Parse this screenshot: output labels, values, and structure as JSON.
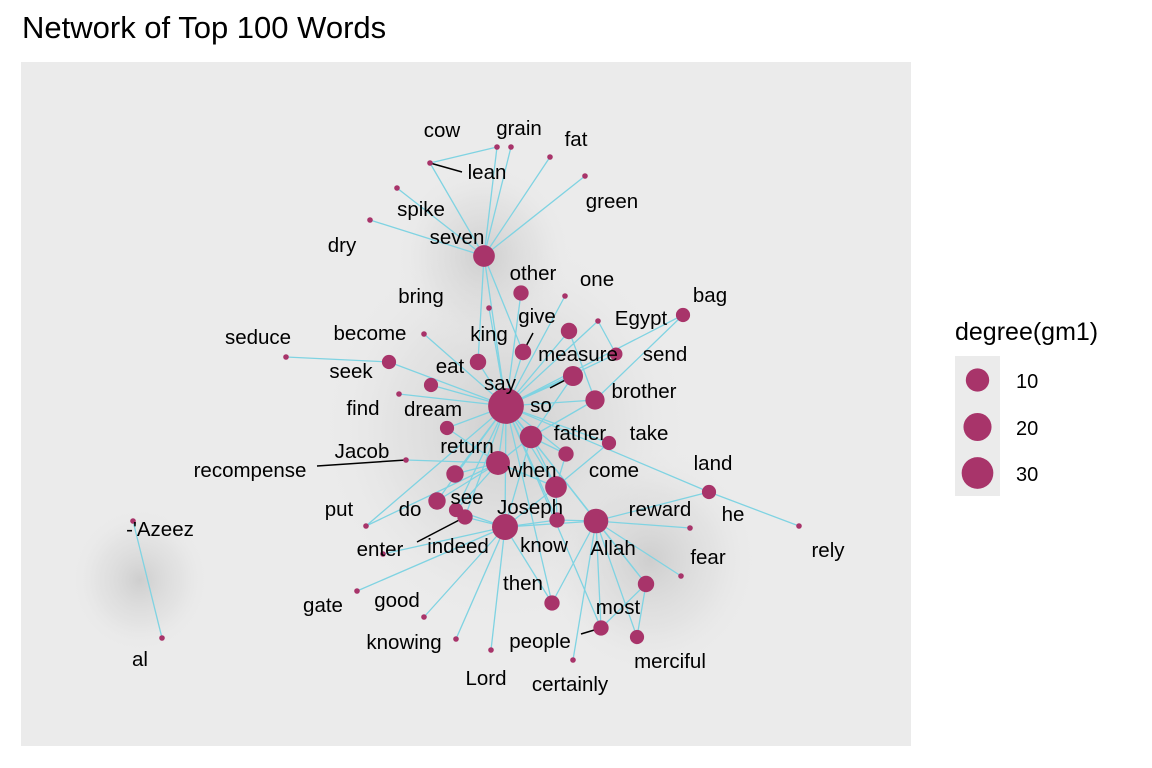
{
  "title": "Network of Top 100 Words",
  "chart_data": {
    "type": "network",
    "title": "Network of Top 100 Words",
    "colors": {
      "node": "#a8346a",
      "edge": "#7fd3e2",
      "panel": "#ebebeb",
      "legend_key": "#ebebeb"
    },
    "legend": {
      "title": "degree(gm1)",
      "placement": "right",
      "entries": [
        {
          "label": "10",
          "value": 10
        },
        {
          "label": "20",
          "value": 20
        },
        {
          "label": "30",
          "value": 30
        }
      ]
    },
    "nodes": [
      {
        "id": "say",
        "label": "say",
        "degree": 38
      },
      {
        "id": "Joseph",
        "label": "Joseph",
        "degree": 20
      },
      {
        "id": "Allah",
        "label": "Allah",
        "degree": 18
      },
      {
        "id": "return",
        "label": "return",
        "degree": 17
      },
      {
        "id": "father",
        "label": "father",
        "degree": 15
      },
      {
        "id": "seven",
        "label": "seven",
        "degree": 14
      },
      {
        "id": "when",
        "label": "when",
        "degree": 14
      },
      {
        "id": "so",
        "label": "so",
        "degree": 12
      },
      {
        "id": "brother",
        "label": "brother",
        "degree": 11
      },
      {
        "id": "do",
        "label": "do",
        "degree": 9
      },
      {
        "id": "Jacob",
        "label": "Jacob",
        "degree": 9
      },
      {
        "id": "most",
        "label": "most",
        "degree": 8
      },
      {
        "id": "people",
        "label": "people",
        "degree": 7
      },
      {
        "id": "king",
        "label": "king",
        "degree": 8
      },
      {
        "id": "give",
        "label": "give",
        "degree": 8
      },
      {
        "id": "measure",
        "label": "measure",
        "degree": 8
      },
      {
        "id": "other",
        "label": "other",
        "degree": 7
      },
      {
        "id": "come",
        "label": "come",
        "degree": 7
      },
      {
        "id": "know",
        "label": "know",
        "degree": 7
      },
      {
        "id": "indeed",
        "label": "indeed",
        "degree": 7
      },
      {
        "id": "then",
        "label": "then",
        "degree": 7
      },
      {
        "id": "seek",
        "label": "seek",
        "degree": 6
      },
      {
        "id": "eat",
        "label": "eat",
        "degree": 6
      },
      {
        "id": "dream",
        "label": "dream",
        "degree": 6
      },
      {
        "id": "take",
        "label": "take",
        "degree": 6
      },
      {
        "id": "bag",
        "label": "bag",
        "degree": 6
      },
      {
        "id": "land",
        "label": "land",
        "degree": 6
      },
      {
        "id": "see",
        "label": "see",
        "degree": 6
      },
      {
        "id": "merciful",
        "label": "merciful",
        "degree": 6
      },
      {
        "id": "send",
        "label": "send",
        "degree": 5
      },
      {
        "id": "lean",
        "label": "lean",
        "degree": 2
      },
      {
        "id": "cow",
        "label": "cow",
        "degree": 1
      },
      {
        "id": "grain",
        "label": "grain",
        "degree": 1
      },
      {
        "id": "fat",
        "label": "fat",
        "degree": 1
      },
      {
        "id": "green",
        "label": "green",
        "degree": 1
      },
      {
        "id": "spike",
        "label": "spike",
        "degree": 1
      },
      {
        "id": "dry",
        "label": "dry",
        "degree": 1
      },
      {
        "id": "one",
        "label": "one",
        "degree": 1
      },
      {
        "id": "bring",
        "label": "bring",
        "degree": 1
      },
      {
        "id": "Egypt",
        "label": "Egypt",
        "degree": 2
      },
      {
        "id": "become",
        "label": "become",
        "degree": 1
      },
      {
        "id": "seduce",
        "label": "seduce",
        "degree": 1
      },
      {
        "id": "find",
        "label": "find",
        "degree": 1
      },
      {
        "id": "recompense",
        "label": "recompense",
        "degree": 1
      },
      {
        "id": "put",
        "label": "put",
        "degree": 1
      },
      {
        "id": "enter",
        "label": "enter",
        "degree": 1
      },
      {
        "id": "reward",
        "label": "reward",
        "degree": 1
      },
      {
        "id": "he",
        "label": "he",
        "degree": 2
      },
      {
        "id": "rely",
        "label": "rely",
        "degree": 1
      },
      {
        "id": "fear",
        "label": "fear",
        "degree": 1
      },
      {
        "id": "gate",
        "label": "gate",
        "degree": 1
      },
      {
        "id": "good",
        "label": "good",
        "degree": 1
      },
      {
        "id": "knowing",
        "label": "knowing",
        "degree": 1
      },
      {
        "id": "Lord",
        "label": "Lord",
        "degree": 1
      },
      {
        "id": "certainly",
        "label": "certainly",
        "degree": 1
      },
      {
        "id": "Azeez",
        "label": "-'Azeez",
        "degree": 1
      },
      {
        "id": "al",
        "label": "al",
        "degree": 1
      }
    ],
    "edges": [
      [
        "seven",
        "cow"
      ],
      [
        "seven",
        "lean"
      ],
      [
        "seven",
        "grain"
      ],
      [
        "seven",
        "fat"
      ],
      [
        "seven",
        "green"
      ],
      [
        "seven",
        "spike"
      ],
      [
        "seven",
        "dry"
      ],
      [
        "seven",
        "say"
      ],
      [
        "seven",
        "king"
      ],
      [
        "seven",
        "give"
      ],
      [
        "cow",
        "lean"
      ],
      [
        "say",
        "other"
      ],
      [
        "say",
        "one"
      ],
      [
        "say",
        "give"
      ],
      [
        "say",
        "measure"
      ],
      [
        "say",
        "Egypt"
      ],
      [
        "say",
        "bag"
      ],
      [
        "say",
        "send"
      ],
      [
        "say",
        "brother"
      ],
      [
        "say",
        "so"
      ],
      [
        "say",
        "king"
      ],
      [
        "say",
        "bring"
      ],
      [
        "say",
        "eat"
      ],
      [
        "say",
        "seek"
      ],
      [
        "say",
        "dream"
      ],
      [
        "say",
        "find"
      ],
      [
        "say",
        "become"
      ],
      [
        "say",
        "father"
      ],
      [
        "say",
        "take"
      ],
      [
        "say",
        "come"
      ],
      [
        "say",
        "return"
      ],
      [
        "say",
        "when"
      ],
      [
        "say",
        "Jacob"
      ],
      [
        "say",
        "Joseph"
      ],
      [
        "say",
        "Allah"
      ],
      [
        "say",
        "know"
      ],
      [
        "say",
        "do"
      ],
      [
        "say",
        "see"
      ],
      [
        "say",
        "indeed"
      ],
      [
        "say",
        "then"
      ],
      [
        "say",
        "people"
      ],
      [
        "say",
        "most"
      ],
      [
        "say",
        "land"
      ],
      [
        "say",
        "put"
      ],
      [
        "seek",
        "seduce"
      ],
      [
        "return",
        "Jacob"
      ],
      [
        "return",
        "recompense"
      ],
      [
        "return",
        "do"
      ],
      [
        "return",
        "see"
      ],
      [
        "return",
        "put"
      ],
      [
        "return",
        "father"
      ],
      [
        "return",
        "when"
      ],
      [
        "return",
        "dream"
      ],
      [
        "Joseph",
        "enter"
      ],
      [
        "Joseph",
        "gate"
      ],
      [
        "Joseph",
        "good"
      ],
      [
        "Joseph",
        "knowing"
      ],
      [
        "Joseph",
        "Lord"
      ],
      [
        "Joseph",
        "then"
      ],
      [
        "Joseph",
        "know"
      ],
      [
        "Joseph",
        "indeed"
      ],
      [
        "Joseph",
        "father"
      ],
      [
        "Joseph",
        "Allah"
      ],
      [
        "Joseph",
        "when"
      ],
      [
        "Joseph",
        "see"
      ],
      [
        "Allah",
        "reward"
      ],
      [
        "Allah",
        "fear"
      ],
      [
        "Allah",
        "merciful"
      ],
      [
        "Allah",
        "most"
      ],
      [
        "Allah",
        "people"
      ],
      [
        "Allah",
        "certainly"
      ],
      [
        "Allah",
        "know"
      ],
      [
        "Allah",
        "then"
      ],
      [
        "Allah",
        "land"
      ],
      [
        "father",
        "brother"
      ],
      [
        "father",
        "so"
      ],
      [
        "father",
        "when"
      ],
      [
        "father",
        "come"
      ],
      [
        "when",
        "come"
      ],
      [
        "when",
        "take"
      ],
      [
        "when",
        "know"
      ],
      [
        "land",
        "he"
      ],
      [
        "he",
        "rely"
      ],
      [
        "most",
        "merciful"
      ],
      [
        "most",
        "people"
      ],
      [
        "brother",
        "measure"
      ],
      [
        "brother",
        "bag"
      ],
      [
        "Egypt",
        "send"
      ],
      [
        "Azeez",
        "al"
      ]
    ]
  }
}
